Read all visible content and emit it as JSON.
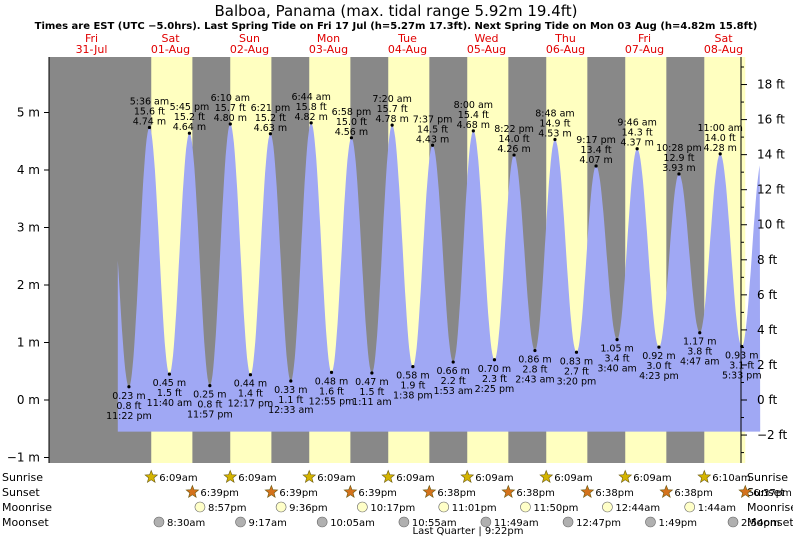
{
  "title": "Balboa, Panama (max. tidal range 5.92m 19.4ft)",
  "subtitle": "Times are EST (UTC −5.0hrs). Last Spring Tide on Fri 17 Jul (h=5.27m 17.3ft). Next Spring Tide on Mon 03 Aug (h=4.82m 15.8ft)",
  "colors": {
    "day": "#ffffc0",
    "night": "#888888",
    "tide": "#a0a8f4",
    "day_label": "#e00000",
    "sun_icon": "#d4b400",
    "sunset_icon": "#d4721c",
    "moonrise_icon": "#ffffc8",
    "moonset_icon": "#b0b0b0"
  },
  "days": [
    {
      "dow": "Fri",
      "date": "31-Jul"
    },
    {
      "dow": "Sat",
      "date": "01-Aug"
    },
    {
      "dow": "Sun",
      "date": "02-Aug"
    },
    {
      "dow": "Mon",
      "date": "03-Aug"
    },
    {
      "dow": "Tue",
      "date": "04-Aug"
    },
    {
      "dow": "Wed",
      "date": "05-Aug"
    },
    {
      "dow": "Thu",
      "date": "06-Aug"
    },
    {
      "dow": "Fri",
      "date": "07-Aug"
    },
    {
      "dow": "Sat",
      "date": "08-Aug"
    }
  ],
  "chart_data": {
    "type": "area",
    "x_unit": "hours since 31-Jul 00:00 EST",
    "left_axis": {
      "label": "m",
      "range": [
        -1.3,
        5.9
      ],
      "ticks": [
        -1,
        0,
        1,
        2,
        3,
        4,
        5
      ],
      "tick_labels": [
        "−1 m",
        "0 m",
        "1 m",
        "2 m",
        "3 m",
        "4 m",
        "5 m"
      ]
    },
    "right_axis": {
      "label": "ft",
      "ticks": [
        -2,
        0,
        2,
        4,
        6,
        8,
        10,
        12,
        14,
        16,
        18
      ],
      "tick_labels": [
        "−2 ft",
        "0 ft",
        "2 ft",
        "4 ft",
        "6 ft",
        "8 ft",
        "10 ft",
        "12 ft",
        "14 ft",
        "16 ft",
        "18 ft"
      ]
    },
    "grid": false,
    "tides": [
      {
        "type": "low",
        "day": 0,
        "time": "11:22 pm",
        "m": 0.23,
        "ft": "0.8 ft",
        "m_label": "0.23 m"
      },
      {
        "type": "high",
        "day": 1,
        "time": "5:36 am",
        "m": 4.74,
        "ft": "15.6 ft",
        "m_label": "4.74 m"
      },
      {
        "type": "low",
        "day": 1,
        "time": "11:40 am",
        "m": 0.45,
        "ft": "1.5 ft",
        "m_label": "0.45 m"
      },
      {
        "type": "high",
        "day": 1,
        "time": "5:45 pm",
        "m": 4.64,
        "ft": "15.2 ft",
        "m_label": "4.64 m"
      },
      {
        "type": "low",
        "day": 1,
        "time": "11:57 pm",
        "m": 0.25,
        "ft": "0.8 ft",
        "m_label": "0.25 m"
      },
      {
        "type": "high",
        "day": 2,
        "time": "6:10 am",
        "m": 4.8,
        "ft": "15.7 ft",
        "m_label": "4.80 m"
      },
      {
        "type": "low",
        "day": 2,
        "time": "12:17 pm",
        "m": 0.44,
        "ft": "1.4 ft",
        "m_label": "0.44 m"
      },
      {
        "type": "high",
        "day": 2,
        "time": "6:21 pm",
        "m": 4.63,
        "ft": "15.2 ft",
        "m_label": "4.63 m"
      },
      {
        "type": "low",
        "day": 3,
        "time": "12:33 am",
        "m": 0.33,
        "ft": "1.1 ft",
        "m_label": "0.33 m"
      },
      {
        "type": "high",
        "day": 3,
        "time": "6:44 am",
        "m": 4.82,
        "ft": "15.8 ft",
        "m_label": "4.82 m"
      },
      {
        "type": "low",
        "day": 3,
        "time": "12:55 pm",
        "m": 0.48,
        "ft": "1.6 ft",
        "m_label": "0.48 m"
      },
      {
        "type": "high",
        "day": 3,
        "time": "6:58 pm",
        "m": 4.56,
        "ft": "15.0 ft",
        "m_label": "4.56 m"
      },
      {
        "type": "low",
        "day": 4,
        "time": "1:11 am",
        "m": 0.47,
        "ft": "1.5 ft",
        "m_label": "0.47 m"
      },
      {
        "type": "high",
        "day": 4,
        "time": "7:20 am",
        "m": 4.78,
        "ft": "15.7 ft",
        "m_label": "4.78 m"
      },
      {
        "type": "low",
        "day": 4,
        "time": "1:38 pm",
        "m": 0.58,
        "ft": "1.9 ft",
        "m_label": "0.58 m"
      },
      {
        "type": "high",
        "day": 4,
        "time": "7:37 pm",
        "m": 4.43,
        "ft": "14.5 ft",
        "m_label": "4.43 m"
      },
      {
        "type": "low",
        "day": 5,
        "time": "1:53 am",
        "m": 0.66,
        "ft": "2.2 ft",
        "m_label": "0.66 m"
      },
      {
        "type": "high",
        "day": 5,
        "time": "8:00 am",
        "m": 4.68,
        "ft": "15.4 ft",
        "m_label": "4.68 m"
      },
      {
        "type": "low",
        "day": 5,
        "time": "2:25 pm",
        "m": 0.7,
        "ft": "2.3 ft",
        "m_label": "0.70 m"
      },
      {
        "type": "high",
        "day": 5,
        "time": "8:22 pm",
        "m": 4.26,
        "ft": "14.0 ft",
        "m_label": "4.26 m"
      },
      {
        "type": "low",
        "day": 6,
        "time": "2:43 am",
        "m": 0.86,
        "ft": "2.8 ft",
        "m_label": "0.86 m"
      },
      {
        "type": "high",
        "day": 6,
        "time": "8:48 am",
        "m": 4.53,
        "ft": "14.9 ft",
        "m_label": "4.53 m"
      },
      {
        "type": "low",
        "day": 6,
        "time": "3:20 pm",
        "m": 0.83,
        "ft": "2.7 ft",
        "m_label": "0.83 m"
      },
      {
        "type": "high",
        "day": 6,
        "time": "9:17 pm",
        "m": 4.07,
        "ft": "13.4 ft",
        "m_label": "4.07 m"
      },
      {
        "type": "low",
        "day": 7,
        "time": "3:40 am",
        "m": 1.05,
        "ft": "3.4 ft",
        "m_label": "1.05 m"
      },
      {
        "type": "high",
        "day": 7,
        "time": "9:46 am",
        "m": 4.37,
        "ft": "14.3 ft",
        "m_label": "4.37 m"
      },
      {
        "type": "low",
        "day": 7,
        "time": "4:23 pm",
        "m": 0.92,
        "ft": "3.0 ft",
        "m_label": "0.92 m"
      },
      {
        "type": "high",
        "day": 7,
        "time": "10:28 pm",
        "m": 3.93,
        "ft": "12.9 ft",
        "m_label": "3.93 m"
      },
      {
        "type": "low",
        "day": 8,
        "time": "4:47 am",
        "m": 1.17,
        "ft": "3.8 ft",
        "m_label": "1.17 m"
      },
      {
        "type": "high",
        "day": 8,
        "time": "11:00 am",
        "m": 4.28,
        "ft": "14.0 ft",
        "m_label": "4.28 m"
      },
      {
        "type": "low",
        "day": 8,
        "time": "5:33 pm",
        "m": 0.93,
        "ft": "3.1 ft",
        "m_label": "0.93 m"
      }
    ]
  },
  "astro": {
    "row_labels": {
      "sunrise": "Sunrise",
      "sunset": "Sunset",
      "moonrise": "Moonrise",
      "moonset": "Moonset"
    },
    "sunrise": [
      {
        "day": 1,
        "time": "6:09am"
      },
      {
        "day": 2,
        "time": "6:09am"
      },
      {
        "day": 3,
        "time": "6:09am"
      },
      {
        "day": 4,
        "time": "6:09am"
      },
      {
        "day": 5,
        "time": "6:09am"
      },
      {
        "day": 6,
        "time": "6:09am"
      },
      {
        "day": 7,
        "time": "6:09am"
      },
      {
        "day": 8,
        "time": "6:10am"
      }
    ],
    "sunset": [
      {
        "day": 1,
        "time": "6:39pm"
      },
      {
        "day": 2,
        "time": "6:39pm"
      },
      {
        "day": 3,
        "time": "6:39pm"
      },
      {
        "day": 4,
        "time": "6:38pm"
      },
      {
        "day": 5,
        "time": "6:38pm"
      },
      {
        "day": 6,
        "time": "6:38pm"
      },
      {
        "day": 7,
        "time": "6:38pm"
      },
      {
        "day": 8,
        "time": "6:37pm"
      }
    ],
    "moonrise": [
      {
        "day": 1,
        "time": "8:57pm"
      },
      {
        "day": 2,
        "time": "9:36pm"
      },
      {
        "day": 3,
        "time": "10:17pm"
      },
      {
        "day": 4,
        "time": "11:01pm"
      },
      {
        "day": 5,
        "time": "11:50pm"
      },
      {
        "day": 7,
        "time": "12:44am"
      },
      {
        "day": 8,
        "time": "1:44am"
      }
    ],
    "moonset": [
      {
        "day": 1,
        "time": "8:30am"
      },
      {
        "day": 2,
        "time": "9:17am"
      },
      {
        "day": 3,
        "time": "10:05am"
      },
      {
        "day": 4,
        "time": "10:55am"
      },
      {
        "day": 5,
        "time": "11:49am"
      },
      {
        "day": 6,
        "time": "12:47pm"
      },
      {
        "day": 7,
        "time": "1:49pm"
      },
      {
        "day": 8,
        "time": "2:54pm"
      }
    ],
    "moon_phase": "Last Quarter | 9:22pm"
  }
}
